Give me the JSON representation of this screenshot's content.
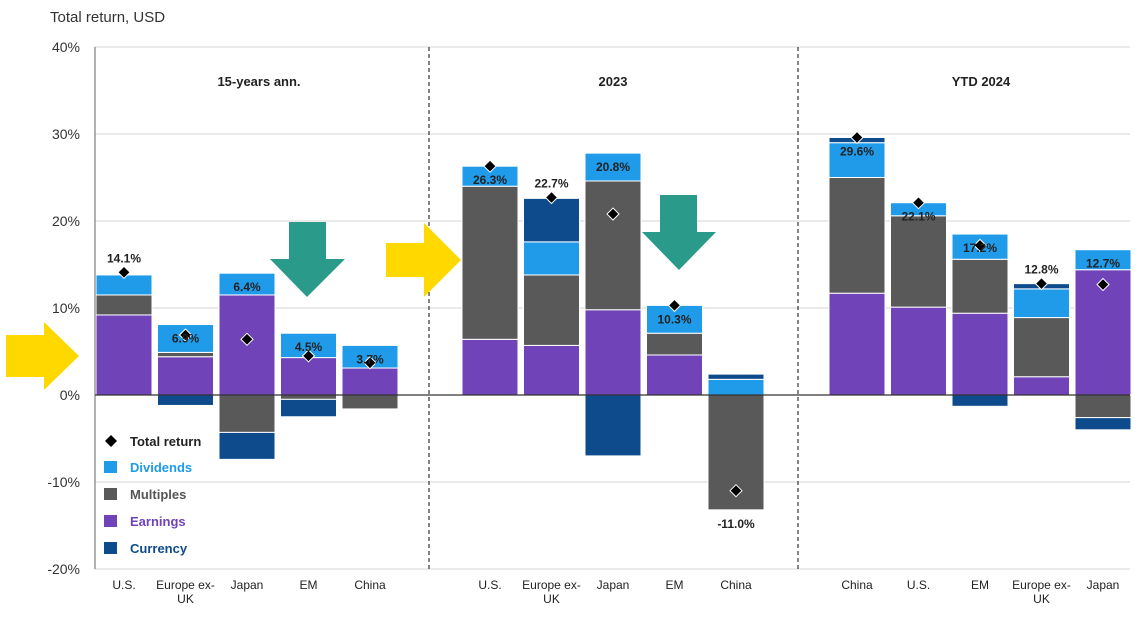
{
  "chart_data": {
    "type": "bar",
    "stacked": true,
    "title": "Total return, USD",
    "ylim": [
      -20,
      40
    ],
    "yticks": [
      "-20%",
      "-10%",
      "0%",
      "10%",
      "20%",
      "30%",
      "40%"
    ],
    "grid": true,
    "legend_placement": "bottom-left",
    "colors": {
      "Dividends": "#1f9bea",
      "Multiples": "#595959",
      "Earnings": "#7043b8",
      "Currency": "#0d4b8c",
      "Total return": "#000000",
      "Arrow yellow": "#ffd800",
      "Arrow teal": "#2a9b8a"
    },
    "legend": [
      {
        "name": "Total return",
        "color": "#000000"
      },
      {
        "name": "Dividends",
        "color": "#1f9bea"
      },
      {
        "name": "Multiples",
        "color": "#595959"
      },
      {
        "name": "Earnings",
        "color": "#7043b8"
      },
      {
        "name": "Currency",
        "color": "#0d4b8c"
      }
    ],
    "panels": [
      {
        "title": "15-years ann.",
        "categories": [
          "U.S.",
          "Europe ex-UK",
          "Japan",
          "EM",
          "China"
        ],
        "bars": [
          {
            "Earnings": 9.2,
            "Multiples": 2.3,
            "Dividends": 2.3,
            "Currency": 0.0,
            "total": 14.1,
            "total_label": "14.1%"
          },
          {
            "Earnings": 4.4,
            "Multiples": 0.5,
            "Dividends": 3.2,
            "Currency": -1.2,
            "total": 6.9,
            "total_label": "6.9%"
          },
          {
            "Earnings": 11.5,
            "Multiples": -4.3,
            "Dividends": 2.5,
            "Currency": -3.1,
            "total": 6.4,
            "total_label": "6.4%"
          },
          {
            "Earnings": 4.3,
            "Multiples": -0.5,
            "Dividends": 2.8,
            "Currency": -2.0,
            "total": 4.5,
            "total_label": "4.5%"
          },
          {
            "Earnings": 3.1,
            "Multiples": -1.6,
            "Dividends": 2.6,
            "Currency": 0.0,
            "total": 3.7,
            "total_label": "3.7%"
          }
        ]
      },
      {
        "title": "2023",
        "categories": [
          "U.S.",
          "Europe ex-UK",
          "Japan",
          "EM",
          "China"
        ],
        "bars": [
          {
            "Earnings": 6.4,
            "Multiples": 17.6,
            "Dividends": 2.3,
            "Currency": 0.0,
            "total": 26.3,
            "total_label": "26.3%"
          },
          {
            "Earnings": 5.7,
            "Multiples": 8.1,
            "Dividends": 3.8,
            "Currency": 5.0,
            "total": 22.7,
            "total_label": "22.7%"
          },
          {
            "Earnings": 9.8,
            "Multiples": 14.8,
            "Dividends": 3.2,
            "Currency": -7.0,
            "total": 20.8,
            "total_label": "20.8%"
          },
          {
            "Earnings": 4.6,
            "Multiples": 2.5,
            "Dividends": 3.2,
            "Currency": 0.0,
            "total": 10.3,
            "total_label": "10.3%"
          },
          {
            "Earnings": 0.0,
            "Multiples": -13.2,
            "Dividends": 1.8,
            "Currency": 0.6,
            "total": -11.0,
            "total_label": "-11.0%"
          }
        ]
      },
      {
        "title": "YTD 2024",
        "categories": [
          "China",
          "U.S.",
          "EM",
          "Europe ex-UK",
          "Japan"
        ],
        "bars": [
          {
            "Earnings": 11.7,
            "Multiples": 13.3,
            "Dividends": 4.0,
            "Currency": 0.6,
            "total": 29.6,
            "total_label": "29.6%"
          },
          {
            "Earnings": 10.1,
            "Multiples": 10.5,
            "Dividends": 1.5,
            "Currency": 0.0,
            "total": 22.1,
            "total_label": "22.1%"
          },
          {
            "Earnings": 9.4,
            "Multiples": 6.2,
            "Dividends": 2.9,
            "Currency": -1.3,
            "total": 17.2,
            "total_label": "17.2%"
          },
          {
            "Earnings": 2.1,
            "Multiples": 6.8,
            "Dividends": 3.3,
            "Currency": 0.6,
            "total": 12.8,
            "total_label": "12.8%"
          },
          {
            "Earnings": 14.4,
            "Multiples": -2.6,
            "Dividends": 2.3,
            "Currency": -1.4,
            "total": 12.7,
            "total_label": "12.7%"
          }
        ]
      }
    ]
  }
}
